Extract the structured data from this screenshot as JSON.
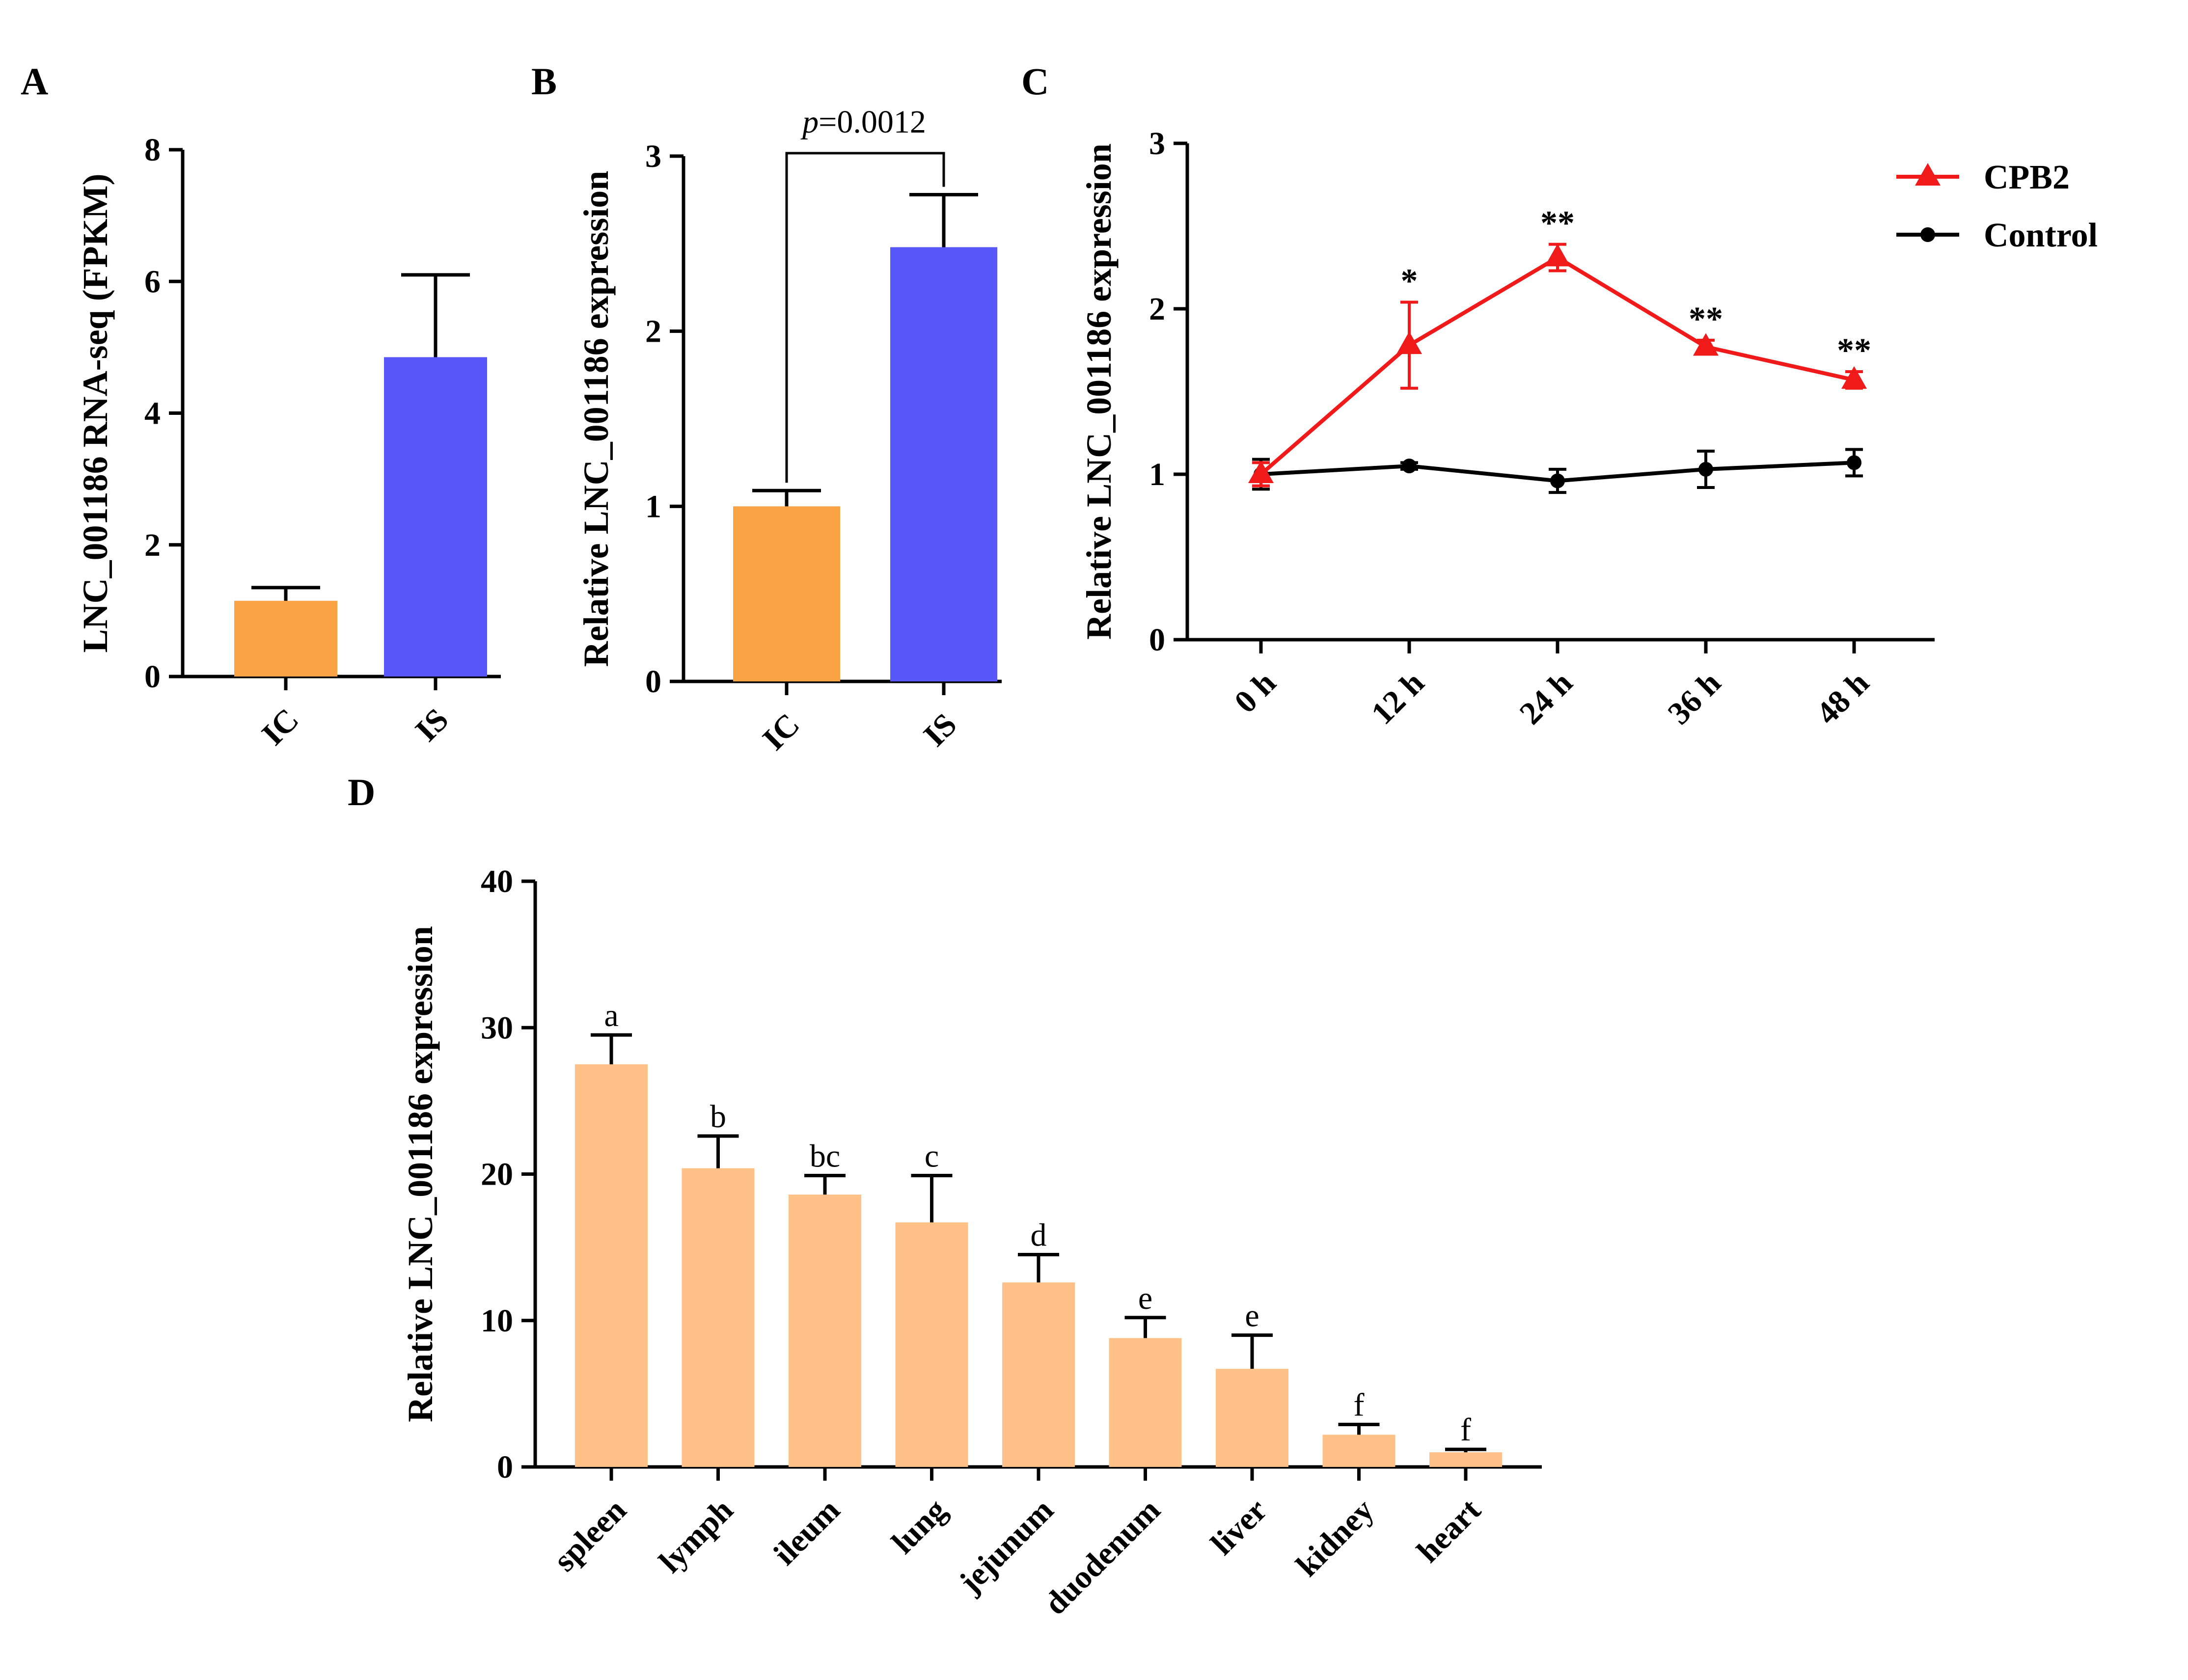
{
  "chart_data": [
    {
      "panel": "A",
      "type": "bar",
      "categories": [
        "IC",
        "IS"
      ],
      "values": [
        1.15,
        4.85
      ],
      "errors": [
        0.2,
        1.25
      ],
      "colors": [
        "#FAA345",
        "#5757FA"
      ],
      "ylabel": "LNC_001186 RNA-seq (FPKM)",
      "ylim": [
        0,
        8
      ],
      "yticks": [
        0,
        2,
        4,
        6,
        8
      ]
    },
    {
      "panel": "B",
      "type": "bar",
      "categories": [
        "IC",
        "IS"
      ],
      "values": [
        1.0,
        2.48
      ],
      "errors": [
        0.09,
        0.3
      ],
      "colors": [
        "#FAA345",
        "#5757FA"
      ],
      "ylabel": "Relative LNC_001186 expression",
      "ylim": [
        0,
        3
      ],
      "yticks": [
        0,
        1,
        2,
        3
      ],
      "annotation": {
        "p_label": "p",
        "p_value": "=0.0012"
      }
    },
    {
      "panel": "C",
      "type": "line",
      "x": [
        "0 h",
        "12 h",
        "24 h",
        "36 h",
        "48 h"
      ],
      "series": [
        {
          "name": "CPB2",
          "color": "#F01A1A",
          "marker": "triangle",
          "values": [
            1.0,
            1.78,
            2.31,
            1.77,
            1.57
          ],
          "errors": [
            0.07,
            0.26,
            0.08,
            0.04,
            0.05
          ],
          "significance": [
            "",
            "*",
            "**",
            "**",
            "**"
          ]
        },
        {
          "name": "Control",
          "color": "#000000",
          "marker": "circle",
          "values": [
            1.0,
            1.05,
            0.96,
            1.03,
            1.07
          ],
          "errors": [
            0.09,
            0.02,
            0.07,
            0.11,
            0.08
          ]
        }
      ],
      "ylabel": "Relative LNC_001186 expression",
      "ylim": [
        0,
        3
      ],
      "yticks": [
        0,
        1,
        2,
        3
      ],
      "legend_position": "top-right"
    },
    {
      "panel": "D",
      "type": "bar",
      "categories": [
        "spleen",
        "lymph",
        "ileum",
        "lung",
        "jejunum",
        "duodenum",
        "liver",
        "kidney",
        "heart"
      ],
      "values": [
        27.5,
        20.4,
        18.6,
        16.7,
        12.6,
        8.8,
        6.7,
        2.2,
        1.0
      ],
      "errors": [
        2.0,
        2.2,
        1.3,
        3.2,
        1.9,
        1.4,
        2.3,
        0.7,
        0.2
      ],
      "letters": [
        "a",
        "b",
        "bc",
        "c",
        "d",
        "e",
        "e",
        "f",
        "f"
      ],
      "color": "#FFC187",
      "ylabel": "Relative LNC_001186 expression",
      "ylim": [
        0,
        40
      ],
      "yticks": [
        0,
        10,
        20,
        30,
        40
      ]
    }
  ]
}
